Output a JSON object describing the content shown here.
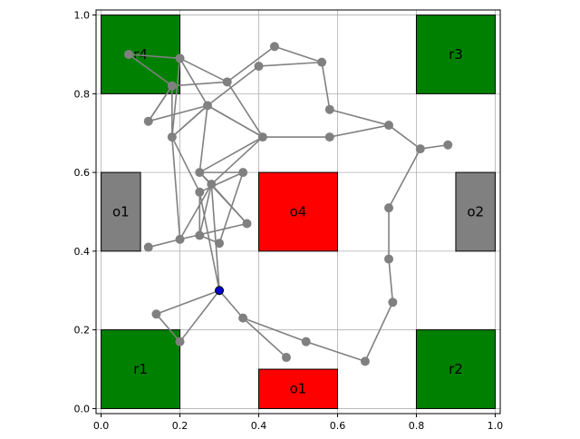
{
  "chart_data": {
    "type": "scatter",
    "title": "",
    "xlabel": "",
    "ylabel": "",
    "xlim": [
      0.0,
      1.0
    ],
    "ylim": [
      0.0,
      1.0
    ],
    "grid": true,
    "x_ticks": [
      "0.0",
      "0.2",
      "0.4",
      "0.6",
      "0.8",
      "1.0"
    ],
    "y_ticks": [
      "0.0",
      "0.2",
      "0.4",
      "0.6",
      "0.8",
      "1.0"
    ],
    "regions": [
      {
        "label": "r4",
        "x0": 0.0,
        "y0": 0.8,
        "x1": 0.2,
        "y1": 1.0,
        "color": "#008000"
      },
      {
        "label": "r3",
        "x0": 0.8,
        "y0": 0.8,
        "x1": 1.0,
        "y1": 1.0,
        "color": "#008000"
      },
      {
        "label": "r1",
        "x0": 0.0,
        "y0": 0.0,
        "x1": 0.2,
        "y1": 0.2,
        "color": "#008000"
      },
      {
        "label": "r2",
        "x0": 0.8,
        "y0": 0.0,
        "x1": 1.0,
        "y1": 0.2,
        "color": "#008000"
      },
      {
        "label": "o1",
        "x0": 0.0,
        "y0": 0.4,
        "x1": 0.1,
        "y1": 0.6,
        "color": "#808080"
      },
      {
        "label": "o2",
        "x0": 0.9,
        "y0": 0.4,
        "x1": 1.0,
        "y1": 0.6,
        "color": "#808080"
      },
      {
        "label": "o4",
        "x0": 0.4,
        "y0": 0.4,
        "x1": 0.6,
        "y1": 0.6,
        "color": "#ff0000"
      },
      {
        "label": "o1",
        "x0": 0.4,
        "y0": 0.0,
        "x1": 0.6,
        "y1": 0.1,
        "color": "#ff0000"
      }
    ],
    "nodes": [
      {
        "x": 0.3,
        "y": 0.3,
        "start": true
      },
      {
        "x": 0.14,
        "y": 0.24
      },
      {
        "x": 0.2,
        "y": 0.17
      },
      {
        "x": 0.36,
        "y": 0.23
      },
      {
        "x": 0.47,
        "y": 0.13
      },
      {
        "x": 0.52,
        "y": 0.17
      },
      {
        "x": 0.67,
        "y": 0.12
      },
      {
        "x": 0.74,
        "y": 0.27
      },
      {
        "x": 0.73,
        "y": 0.38
      },
      {
        "x": 0.73,
        "y": 0.51
      },
      {
        "x": 0.81,
        "y": 0.66
      },
      {
        "x": 0.88,
        "y": 0.67
      },
      {
        "x": 0.73,
        "y": 0.72
      },
      {
        "x": 0.58,
        "y": 0.69
      },
      {
        "x": 0.58,
        "y": 0.76
      },
      {
        "x": 0.56,
        "y": 0.88
      },
      {
        "x": 0.44,
        "y": 0.92
      },
      {
        "x": 0.4,
        "y": 0.87
      },
      {
        "x": 0.32,
        "y": 0.83
      },
      {
        "x": 0.2,
        "y": 0.89
      },
      {
        "x": 0.07,
        "y": 0.9
      },
      {
        "x": 0.18,
        "y": 0.82
      },
      {
        "x": 0.12,
        "y": 0.73
      },
      {
        "x": 0.27,
        "y": 0.77
      },
      {
        "x": 0.18,
        "y": 0.69
      },
      {
        "x": 0.41,
        "y": 0.69
      },
      {
        "x": 0.25,
        "y": 0.6
      },
      {
        "x": 0.36,
        "y": 0.6
      },
      {
        "x": 0.28,
        "y": 0.57
      },
      {
        "x": 0.25,
        "y": 0.55
      },
      {
        "x": 0.37,
        "y": 0.47
      },
      {
        "x": 0.25,
        "y": 0.44
      },
      {
        "x": 0.2,
        "y": 0.43
      },
      {
        "x": 0.3,
        "y": 0.42
      },
      {
        "x": 0.12,
        "y": 0.41
      }
    ],
    "edges": [
      [
        0,
        1
      ],
      [
        1,
        2
      ],
      [
        0,
        2
      ],
      [
        0,
        3
      ],
      [
        3,
        4
      ],
      [
        3,
        5
      ],
      [
        5,
        6
      ],
      [
        6,
        7
      ],
      [
        7,
        8
      ],
      [
        8,
        9
      ],
      [
        9,
        10
      ],
      [
        10,
        11
      ],
      [
        10,
        12
      ],
      [
        12,
        13
      ],
      [
        13,
        25
      ],
      [
        12,
        14
      ],
      [
        14,
        15
      ],
      [
        15,
        16
      ],
      [
        15,
        17
      ],
      [
        16,
        18
      ],
      [
        17,
        23
      ],
      [
        18,
        19
      ],
      [
        19,
        20
      ],
      [
        20,
        21
      ],
      [
        21,
        22
      ],
      [
        22,
        23
      ],
      [
        23,
        19
      ],
      [
        21,
        24
      ],
      [
        24,
        23
      ],
      [
        18,
        21
      ],
      [
        25,
        18
      ],
      [
        25,
        23
      ],
      [
        25,
        26
      ],
      [
        25,
        28
      ],
      [
        23,
        24
      ],
      [
        24,
        29
      ],
      [
        24,
        32
      ],
      [
        23,
        26
      ],
      [
        26,
        27
      ],
      [
        27,
        33
      ],
      [
        27,
        29
      ],
      [
        26,
        30
      ],
      [
        28,
        30
      ],
      [
        28,
        31
      ],
      [
        29,
        31
      ],
      [
        30,
        32
      ],
      [
        31,
        33
      ],
      [
        32,
        34
      ],
      [
        32,
        28
      ],
      [
        29,
        0
      ],
      [
        0,
        28
      ],
      [
        22,
        21
      ],
      [
        19,
        24
      ],
      [
        23,
        25
      ],
      [
        26,
        28
      ]
    ]
  }
}
